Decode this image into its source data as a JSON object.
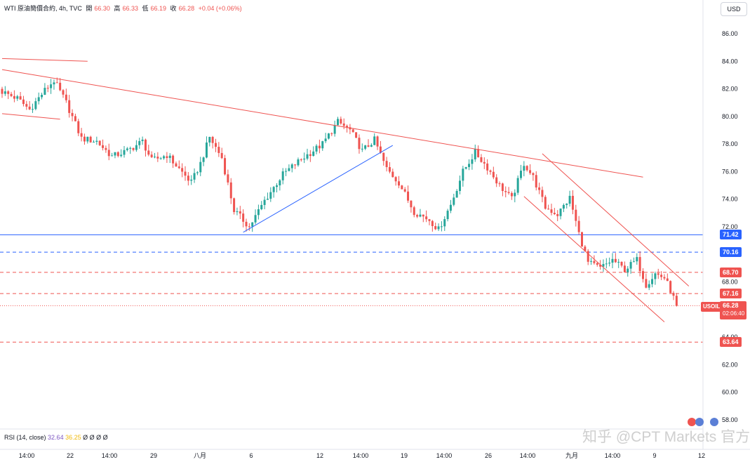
{
  "header": {
    "symbol": "WTI 原油簡價合約, 4h, TVC",
    "open_label": "開",
    "open": "66.30",
    "high_label": "高",
    "high": "66.33",
    "low_label": "低",
    "low": "66.19",
    "close_label": "收",
    "close": "66.28",
    "change": "+0.04 (+0.06%)"
  },
  "currency_button": "USD",
  "rsi": {
    "label": "RSI (14, close)",
    "value1": "32.64",
    "value2": "36.25",
    "extra": "Ø Ø Ø Ø"
  },
  "current_price": {
    "symbol_tag": "USOIL",
    "price": "66.28",
    "countdown": "02:06:40",
    "value": 66.28
  },
  "level_badges": [
    {
      "label": "71.42",
      "value": 71.42,
      "color": "#2962ff"
    },
    {
      "label": "70.16",
      "value": 70.16,
      "color": "#2962ff"
    },
    {
      "label": "68.70",
      "value": 68.7,
      "color": "#ef5350"
    },
    {
      "label": "67.16",
      "value": 67.16,
      "color": "#ef5350"
    },
    {
      "label": "63.64",
      "value": 63.64,
      "color": "#ef5350"
    }
  ],
  "watermark": "知乎 @CPT Markets 官方",
  "chart_data": {
    "type": "candlestick",
    "ylim": [
      57.2,
      87.4
    ],
    "y_ticks": [
      "86.00",
      "84.00",
      "82.00",
      "80.00",
      "78.00",
      "76.00",
      "74.00",
      "72.00",
      "70.00",
      "68.00",
      "66.00",
      "64.00",
      "62.00",
      "60.00",
      "58.00"
    ],
    "x_ticks": [
      "14:00",
      "22",
      "14:00",
      "29",
      "八月",
      "6",
      "12",
      "14:00",
      "19",
      "14:00",
      "26",
      "14:00",
      "九月",
      "14:00",
      "9",
      "12"
    ],
    "colors": {
      "up": "#26a69a",
      "down": "#ef5350",
      "trend": "#ef5350",
      "support": "#2962ff"
    },
    "price_path": [
      [
        0,
        81.8
      ],
      [
        5,
        81.3
      ],
      [
        9,
        80.5
      ],
      [
        14,
        81.9
      ],
      [
        17,
        82.6
      ],
      [
        21,
        81.0
      ],
      [
        26,
        78.4
      ],
      [
        31,
        78.2
      ],
      [
        36,
        77.1
      ],
      [
        41,
        77.5
      ],
      [
        46,
        78.2
      ],
      [
        49,
        76.8
      ],
      [
        54,
        77.2
      ],
      [
        58,
        76.2
      ],
      [
        62,
        75.2
      ],
      [
        65,
        76.6
      ],
      [
        68,
        78.5
      ],
      [
        72,
        77.0
      ],
      [
        76,
        73.2
      ],
      [
        81,
        72.0
      ],
      [
        86,
        73.9
      ],
      [
        92,
        75.8
      ],
      [
        98,
        76.9
      ],
      [
        105,
        78.0
      ],
      [
        110,
        79.6
      ],
      [
        114,
        79.0
      ],
      [
        118,
        77.5
      ],
      [
        122,
        78.3
      ],
      [
        126,
        76.2
      ],
      [
        130,
        75.2
      ],
      [
        135,
        73.1
      ],
      [
        140,
        72.5
      ],
      [
        143,
        71.8
      ],
      [
        147,
        73.6
      ],
      [
        151,
        76.0
      ],
      [
        155,
        77.4
      ],
      [
        159,
        76.3
      ],
      [
        163,
        75.0
      ],
      [
        167,
        74.0
      ],
      [
        171,
        76.6
      ],
      [
        174,
        75.6
      ],
      [
        178,
        73.4
      ],
      [
        182,
        72.9
      ],
      [
        186,
        74.1
      ],
      [
        189,
        71.5
      ],
      [
        192,
        69.4
      ],
      [
        196,
        69.0
      ],
      [
        200,
        69.6
      ],
      [
        204,
        68.9
      ],
      [
        208,
        69.6
      ],
      [
        211,
        67.8
      ],
      [
        214,
        68.6
      ],
      [
        217,
        68.3
      ],
      [
        219,
        67.4
      ],
      [
        221,
        66.28
      ]
    ],
    "trend_lines": [
      {
        "points": [
          [
            0,
            84.2
          ],
          [
            28,
            84.0
          ]
        ],
        "color": "#ef5350"
      },
      {
        "points": [
          [
            0,
            83.4
          ],
          [
            210,
            75.6
          ]
        ],
        "color": "#ef5350"
      },
      {
        "points": [
          [
            0,
            80.2
          ],
          [
            19,
            79.8
          ]
        ],
        "color": "#ef5350"
      },
      {
        "points": [
          [
            79,
            71.6
          ],
          [
            128,
            77.9
          ]
        ],
        "color": "#2962ff"
      },
      {
        "points": [
          [
            177,
            77.3
          ],
          [
            225,
            67.7
          ]
        ],
        "color": "#ef5350"
      },
      {
        "points": [
          [
            171,
            74.2
          ],
          [
            217,
            65.1
          ]
        ],
        "color": "#ef5350"
      }
    ],
    "horizontal_levels": [
      {
        "value": 71.42,
        "style": "solid",
        "color": "#2962ff"
      },
      {
        "value": 70.16,
        "style": "dashed",
        "color": "#2962ff"
      },
      {
        "value": 68.7,
        "style": "dashed",
        "color": "#ef5350"
      },
      {
        "value": 67.16,
        "style": "dashed",
        "color": "#ef5350"
      },
      {
        "value": 66.28,
        "style": "dotted",
        "color": "#ef5350"
      },
      {
        "value": 63.64,
        "style": "dashed",
        "color": "#ef5350"
      }
    ]
  }
}
